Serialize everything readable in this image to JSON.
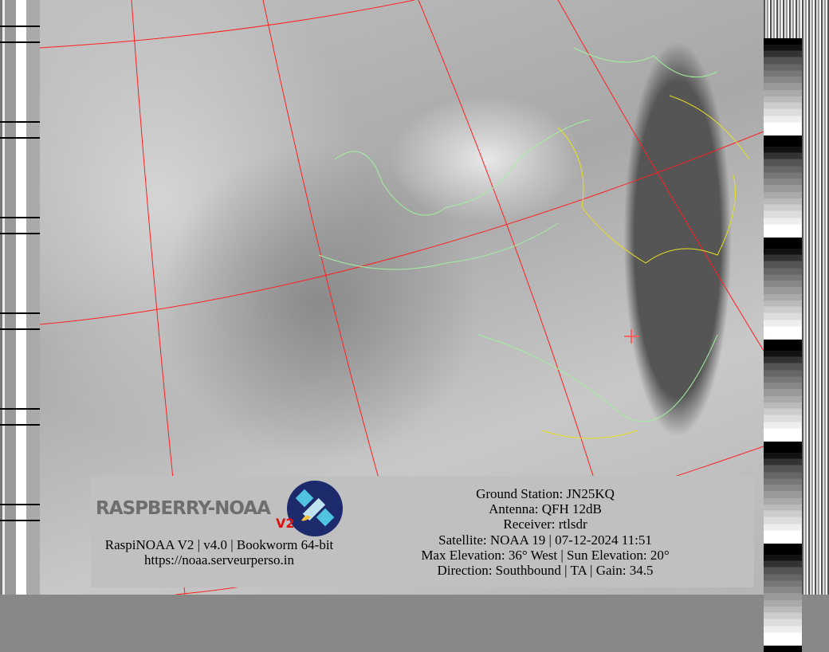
{
  "logo": {
    "text": "RASPBERRY-NOAA",
    "badge": "V2"
  },
  "left_info": {
    "version_line": "RaspiNOAA V2 | v4.0 | Bookworm 64-bit",
    "url": "https://noaa.serveurperso.in"
  },
  "pass_info": {
    "ground_station": "Ground Station: JN25KQ",
    "antenna": "Antenna: QFH 12dB",
    "receiver": "Receiver: rtlsdr",
    "satellite": "Satellite: NOAA 19 | 07-12-2024 11:51",
    "elevation": "Max Elevation: 36° West | Sun Elevation: 20°",
    "direction": "Direction: Southbound | TA | Gain: 34.5"
  },
  "colors": {
    "graticule": "#ff2020",
    "coastline": "#a0f0a0",
    "borders": "#e8e020",
    "panel": "#c0c0c0",
    "logo_red": "#e01010",
    "logo_badge": "#1d2a6b"
  }
}
